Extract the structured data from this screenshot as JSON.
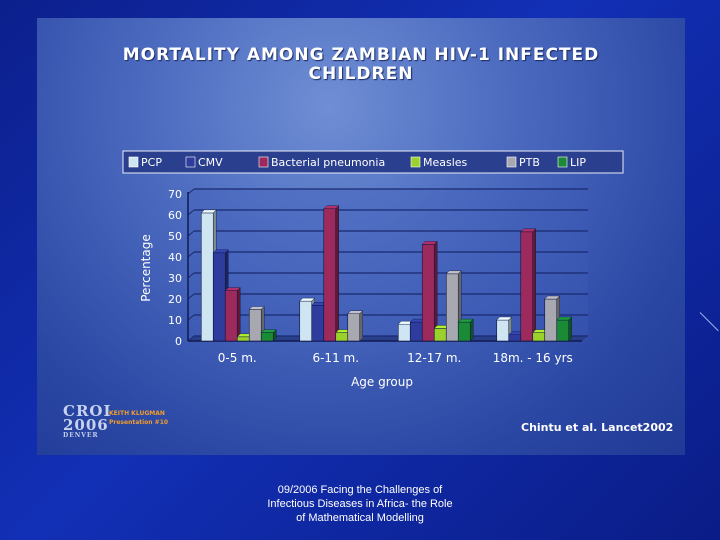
{
  "slide": {
    "title_lines": [
      "MORTALITY AMONG ZAMBIAN HIV-1 INFECTED",
      "CHILDREN"
    ],
    "logo_main": "CROI",
    "logo_year": "2006",
    "logo_city": "DENVER",
    "presenter_lines": [
      "KEITH KLUGMAN",
      "Presentation #10"
    ],
    "citation": "Chintu et al. Lancet2002"
  },
  "footer": {
    "lines": [
      "09/2006 Facing the Challenges of",
      "Infectious Diseases in Africa- the Role",
      "of Mathematical Modelling"
    ]
  },
  "chart_data": {
    "type": "bar",
    "title": "MORTALITY AMONG ZAMBIAN HIV-1 INFECTED CHILDREN",
    "xlabel": "Age group",
    "ylabel": "Percentage",
    "ylim": [
      0,
      70
    ],
    "yticks": [
      0,
      10,
      20,
      30,
      40,
      50,
      60,
      70
    ],
    "grid": true,
    "legend_position": "top",
    "categories": [
      "0-5 m.",
      "6-11 m.",
      "12-17 m.",
      "18m. - 16 yrs"
    ],
    "series": [
      {
        "name": "PCP",
        "color": "#cfe6f2",
        "values": [
          61,
          19,
          8,
          10
        ]
      },
      {
        "name": "CMV",
        "color": "#2e3c9e",
        "values": [
          42,
          17,
          9,
          3
        ]
      },
      {
        "name": "Bacterial pneumonia",
        "color": "#9c2a5c",
        "values": [
          24,
          63,
          46,
          52
        ]
      },
      {
        "name": "Measles",
        "color": "#9ad12a",
        "values": [
          2,
          4,
          6,
          4
        ]
      },
      {
        "name": "PTB",
        "color": "#a8a8b0",
        "values": [
          15,
          13,
          32,
          20
        ]
      },
      {
        "name": "LIP",
        "color": "#1a8a36",
        "values": [
          4,
          0,
          9,
          10
        ]
      }
    ]
  }
}
